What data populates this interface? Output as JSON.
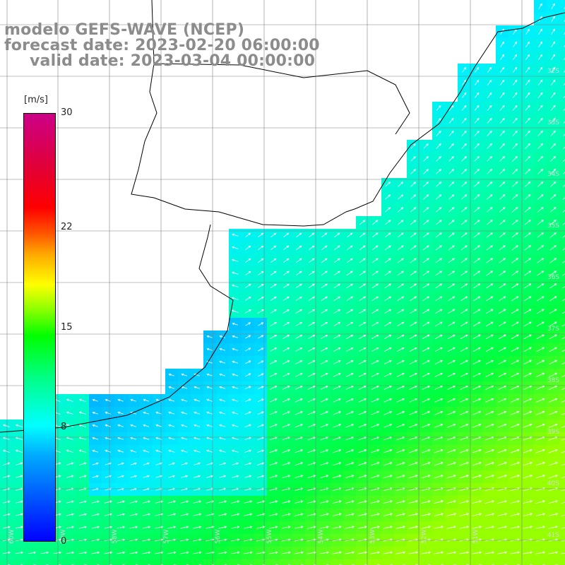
{
  "header": {
    "line1": "modelo GEFS-WAVE (NCEP)",
    "line2": "forecast date: 2023-02-20 06:00:00",
    "line3": "valid date: 2023-03-04 00:00:00"
  },
  "colorbar": {
    "unit": "[m/s]",
    "ticks": [
      {
        "label": "30",
        "value": 30
      },
      {
        "label": "22",
        "value": 22
      },
      {
        "label": "15",
        "value": 15
      },
      {
        "label": "8",
        "value": 8
      },
      {
        "label": "0",
        "value": 0
      }
    ],
    "min": 0,
    "max": 30
  },
  "latitudes": [
    "32S",
    "33S",
    "34S",
    "35S",
    "36S",
    "37S",
    "38S",
    "39S",
    "40S",
    "41S"
  ],
  "longitudes": [
    "60W",
    "59W",
    "58W",
    "57W",
    "56W",
    "55W",
    "54W",
    "53W",
    "52W",
    "51W"
  ],
  "colors": {
    "land": "#ffffff",
    "coast": "#000000",
    "grid": "#808080",
    "arrow": "#ffffff",
    "title": "#8c8c8c"
  }
}
